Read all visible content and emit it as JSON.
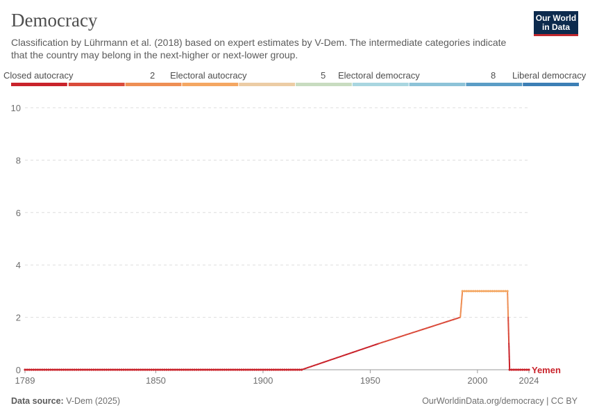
{
  "header": {
    "title": "Democracy",
    "subtitle": "Classification by Lührmann et al. (2018) based on expert estimates by V-Dem. The intermediate categories indicate that the country may belong in the next-higher or next-lower group.",
    "logo_line1": "Our World",
    "logo_line2": "in Data"
  },
  "legend": {
    "labels": [
      "Closed autocracy",
      "2",
      "Electoral autocracy",
      "5",
      "Electoral democracy",
      "8",
      "Liberal democracy"
    ],
    "colors": [
      "#c9232b",
      "#da4b3b",
      "#ee8f55",
      "#f4a762",
      "#eccca5",
      "#c8dcc0",
      "#a9d6e0",
      "#8dc3d8",
      "#5b9dc6",
      "#3d7fb5"
    ]
  },
  "footer": {
    "source_label": "Data source:",
    "source": "V-Dem (2025)",
    "credit": "OurWorldinData.org/democracy | CC BY"
  },
  "chart_data": {
    "type": "line",
    "x_ticks": [
      1789,
      1850,
      1900,
      1950,
      2000,
      2024
    ],
    "y_ticks": [
      0,
      2,
      4,
      6,
      8,
      10
    ],
    "xlim": [
      1789,
      2024
    ],
    "ylim": [
      0,
      10
    ],
    "grid": true,
    "series": [
      {
        "name": "Yemen",
        "color": "#c9232b",
        "points": [
          [
            1789,
            0
          ],
          [
            1918,
            0
          ],
          [
            1954,
            1
          ],
          [
            1992,
            2
          ],
          [
            1993,
            3
          ],
          [
            2014,
            3
          ],
          [
            2015,
            0
          ],
          [
            2024,
            0
          ]
        ]
      }
    ]
  }
}
